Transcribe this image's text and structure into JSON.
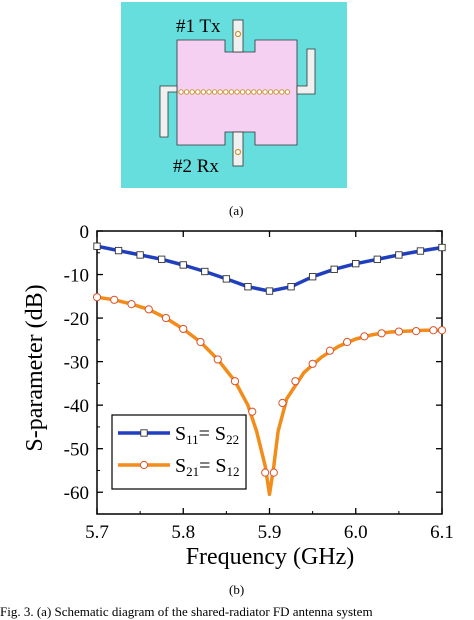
{
  "figure": {
    "sublabel_a": "(a)",
    "sublabel_b": "(b)",
    "caption": "Fig. 3. (a) Schematic diagram of the shared-radiator FD antenna system"
  },
  "schematic": {
    "port1_label": "#1 Tx",
    "port2_label": "#2 Rx",
    "colors": {
      "background": "#66dede",
      "radiator": "#f5d0f2",
      "feed": "#f0f0f0",
      "via": "#c8962c"
    }
  },
  "chart_data": {
    "type": "line",
    "xlabel": "Frequency (GHz)",
    "ylabel": "S-parameter (dB)",
    "xlim": [
      5.7,
      6.1
    ],
    "ylim": [
      -65,
      0
    ],
    "xticks": [
      5.7,
      5.8,
      5.9,
      6.0,
      6.1
    ],
    "xtick_labels": [
      "5.7",
      "5.8",
      "5.9",
      "6.0",
      "6.1"
    ],
    "yticks": [
      0,
      -10,
      -20,
      -30,
      -40,
      -50,
      -60
    ],
    "ytick_labels": [
      "0",
      "-10",
      "-20",
      "-30",
      "-40",
      "-50",
      "-60"
    ],
    "grid": false,
    "legend_placement": "bottom-left",
    "series": [
      {
        "name_main": "S",
        "name_sub1": "11",
        "name_mid": "= S",
        "name_sub2": "22",
        "color": "#1f3fbf",
        "marker": "square",
        "x": [
          5.7,
          5.725,
          5.75,
          5.775,
          5.8,
          5.825,
          5.85,
          5.875,
          5.9,
          5.925,
          5.95,
          5.975,
          6.0,
          6.025,
          6.05,
          6.075,
          6.1
        ],
        "y": [
          -3.5,
          -4.5,
          -5.5,
          -6.5,
          -7.8,
          -9.3,
          -11.0,
          -12.8,
          -13.8,
          -12.8,
          -10.5,
          -8.8,
          -7.5,
          -6.5,
          -5.5,
          -4.6,
          -3.8
        ]
      },
      {
        "name_main": "S",
        "name_sub1": "21",
        "name_mid": "= S",
        "name_sub2": "12",
        "color": "#f28c1a",
        "marker": "circle",
        "x": [
          5.7,
          5.72,
          5.74,
          5.76,
          5.78,
          5.8,
          5.82,
          5.84,
          5.86,
          5.875,
          5.885,
          5.895,
          5.9,
          5.905,
          5.91,
          5.92,
          5.94,
          5.96,
          5.98,
          6.0,
          6.02,
          6.04,
          6.06,
          6.08,
          6.1
        ],
        "y": [
          -15.2,
          -15.8,
          -16.8,
          -18.0,
          -20.0,
          -22.5,
          -25.5,
          -29.5,
          -34.5,
          -40.0,
          -46.0,
          -54.0,
          -60.5,
          -54.0,
          -46.0,
          -38.5,
          -32.5,
          -29.0,
          -26.5,
          -24.8,
          -23.8,
          -23.2,
          -23.0,
          -22.8,
          -22.8
        ]
      }
    ],
    "marker_points": [
      {
        "x": [
          5.7,
          5.725,
          5.75,
          5.775,
          5.8,
          5.825,
          5.85,
          5.875,
          5.9,
          5.925,
          5.95,
          5.975,
          6.0,
          6.025,
          6.05,
          6.075,
          6.1
        ],
        "y": [
          -3.5,
          -4.5,
          -5.5,
          -6.5,
          -7.8,
          -9.3,
          -11.0,
          -12.8,
          -13.8,
          -12.8,
          -10.5,
          -8.8,
          -7.5,
          -6.5,
          -5.5,
          -4.6,
          -3.8
        ]
      },
      {
        "x": [
          5.7,
          5.72,
          5.74,
          5.76,
          5.78,
          5.8,
          5.82,
          5.84,
          5.86,
          5.88,
          5.895,
          5.905,
          5.915,
          5.93,
          5.95,
          5.97,
          5.99,
          6.01,
          6.03,
          6.05,
          6.07,
          6.09,
          6.1
        ],
        "y": [
          -15.2,
          -15.8,
          -16.8,
          -18.0,
          -20.0,
          -22.5,
          -25.5,
          -29.5,
          -34.5,
          -41.5,
          -55.5,
          -55.5,
          -39.5,
          -34.5,
          -30.5,
          -27.5,
          -25.5,
          -24.2,
          -23.5,
          -23.1,
          -23.0,
          -22.8,
          -22.8
        ]
      }
    ]
  }
}
